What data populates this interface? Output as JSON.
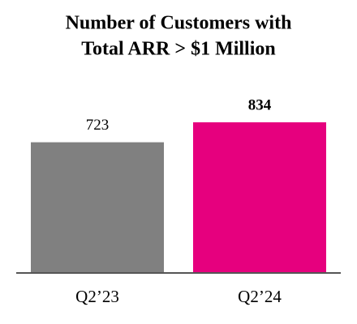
{
  "chart_data": {
    "type": "bar",
    "title": [
      "Number of Customers with",
      "Total ARR > $1 Million"
    ],
    "categories": [
      "Q2’23",
      "Q2’24"
    ],
    "values": [
      723,
      834
    ],
    "colors": [
      "#808080",
      "#e6007e"
    ]
  }
}
